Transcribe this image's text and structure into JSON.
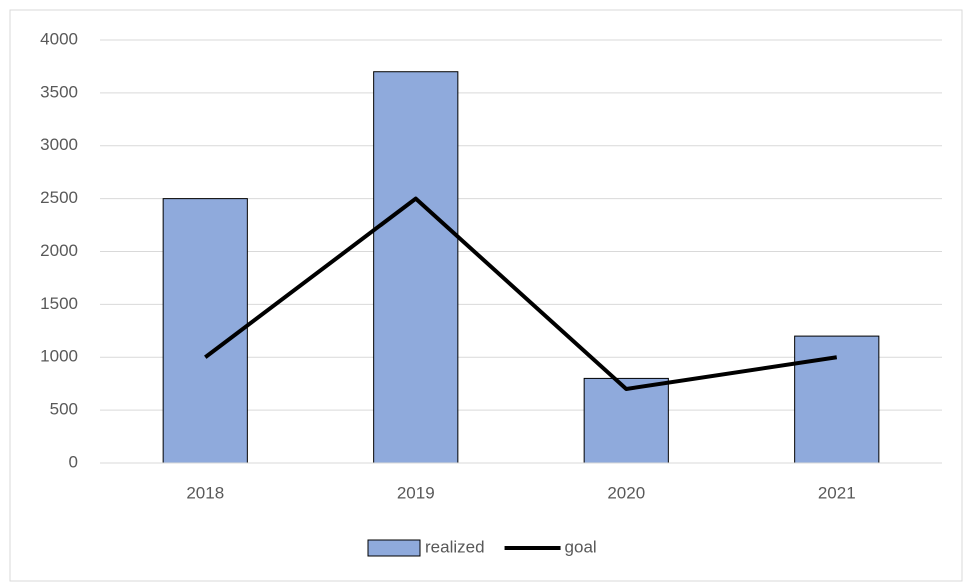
{
  "chart_data": {
    "type": "bar",
    "categories": [
      "2018",
      "2019",
      "2020",
      "2021"
    ],
    "series": [
      {
        "name": "realized",
        "type": "bar",
        "color": "#8faadc",
        "values": [
          2500,
          3700,
          800,
          1200
        ]
      },
      {
        "name": "goal",
        "type": "line",
        "color": "#000000",
        "values": [
          1000,
          2500,
          700,
          1000
        ]
      }
    ],
    "ylim": [
      0,
      4000
    ],
    "yticks": [
      0,
      500,
      1000,
      1500,
      2000,
      2500,
      3000,
      3500,
      4000
    ],
    "grid": true,
    "legend": "bottom"
  }
}
